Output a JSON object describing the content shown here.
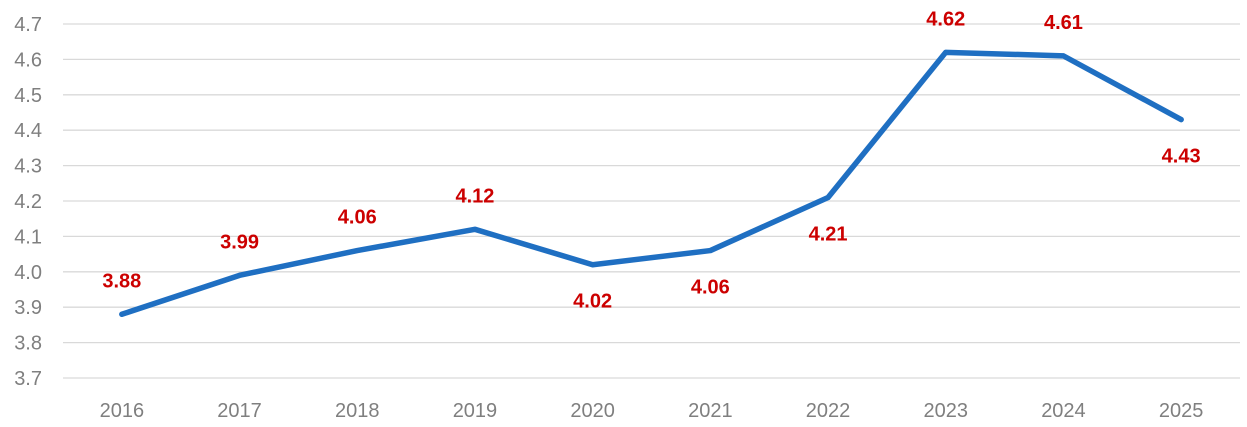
{
  "chart_data": {
    "type": "line",
    "categories": [
      "2016",
      "2017",
      "2018",
      "2019",
      "2020",
      "2021",
      "2022",
      "2023",
      "2024",
      "2025"
    ],
    "series": [
      {
        "values": [
          3.88,
          3.99,
          4.06,
          4.12,
          4.02,
          4.06,
          4.21,
          4.62,
          4.61,
          4.43
        ],
        "data_labels": [
          "3.88",
          "3.99",
          "4.06",
          "4.12",
          "4.02",
          "4.06",
          "4.21",
          "4.62",
          "4.61",
          "4.43"
        ],
        "color": "#1f6fc2"
      }
    ],
    "label_placement": [
      "above",
      "above",
      "above",
      "above",
      "below",
      "below",
      "below",
      "above",
      "above",
      "below"
    ],
    "y_ticks": [
      "3.7",
      "3.8",
      "3.9",
      "4.0",
      "4.1",
      "4.2",
      "4.3",
      "4.4",
      "4.5",
      "4.6",
      "4.7"
    ],
    "ylim": [
      3.7,
      4.7
    ],
    "grid": true,
    "legend": "none",
    "data_label_color": "#cc0000",
    "gridline_color": "#d9d9d9",
    "tick_label_color": "#7f7f7f"
  }
}
